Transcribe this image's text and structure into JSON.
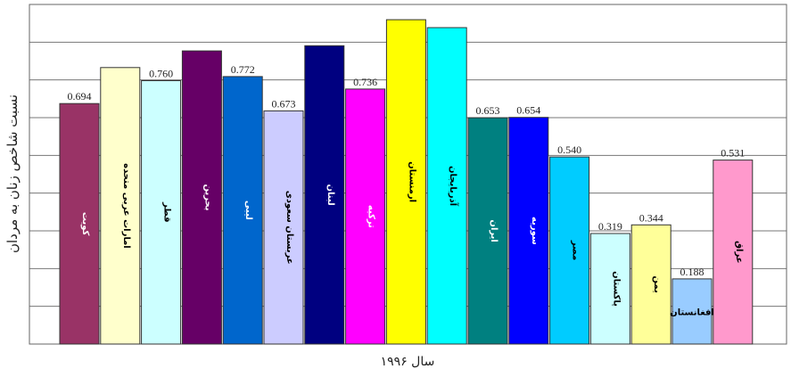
{
  "chart_data": {
    "type": "bar",
    "title": "",
    "xlabel": "سال ۱۹۹۶",
    "ylabel": "نسبت شاخص زنان به مردان",
    "ylim": [
      0,
      0.98
    ],
    "grid": true,
    "categories": [
      "کویت",
      "امارات عربی متحده",
      "قطر",
      "بحرین",
      "لیبی",
      "عربستان سعودی",
      "لبنان",
      "ترکیه",
      "ارمنستان",
      "آذربایجان",
      "ایران",
      "سوریه",
      "مصر",
      "پاکستان",
      "یمن",
      "افغانستان",
      "عراق"
    ],
    "values": [
      0.694,
      0.798,
      0.76,
      0.846,
      0.772,
      0.673,
      0.861,
      0.736,
      0.936,
      0.913,
      0.653,
      0.654,
      0.54,
      0.319,
      0.344,
      0.188,
      0.531
    ],
    "value_labels": [
      "0.694",
      "",
      "0.760",
      "",
      "0.772",
      "0.673",
      "",
      "0.736",
      "",
      "",
      "0.653",
      "0.654",
      "0.540",
      "0.319",
      "0.344",
      "0.188",
      "0.531"
    ],
    "colors": [
      "#993366",
      "#ffffcc",
      "#ccffff",
      "#660066",
      "#0066cc",
      "#ccccff",
      "#000080",
      "#ff00ff",
      "#ffff00",
      "#00ffff",
      "#008080",
      "#0000ff",
      "#00ccff",
      "#ccffff",
      "#ffff99",
      "#99ccff",
      "#ff99cc"
    ],
    "label_colors": [
      "#ffffff",
      "#000000",
      "#000000",
      "#ffffff",
      "#ffffff",
      "#000000",
      "#ffffff",
      "#ffffff",
      "#000000",
      "#000000",
      "#ffffff",
      "#ffffff",
      "#000000",
      "#000000",
      "#000000",
      "#000000",
      "#000000"
    ]
  }
}
